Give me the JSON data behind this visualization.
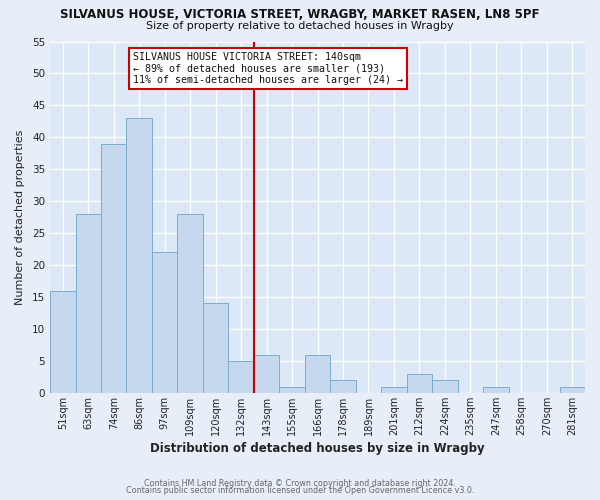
{
  "title": "SILVANUS HOUSE, VICTORIA STREET, WRAGBY, MARKET RASEN, LN8 5PF",
  "subtitle": "Size of property relative to detached houses in Wragby",
  "xlabel": "Distribution of detached houses by size in Wragby",
  "ylabel": "Number of detached properties",
  "bar_labels": [
    "51sqm",
    "63sqm",
    "74sqm",
    "86sqm",
    "97sqm",
    "109sqm",
    "120sqm",
    "132sqm",
    "143sqm",
    "155sqm",
    "166sqm",
    "178sqm",
    "189sqm",
    "201sqm",
    "212sqm",
    "224sqm",
    "235sqm",
    "247sqm",
    "258sqm",
    "270sqm",
    "281sqm"
  ],
  "bar_values": [
    16,
    28,
    39,
    43,
    22,
    28,
    14,
    5,
    6,
    1,
    6,
    2,
    0,
    1,
    3,
    2,
    0,
    1,
    0,
    0,
    1
  ],
  "bar_color": "#c5d8ed",
  "bar_edgecolor": "#7aadce",
  "vline_color": "#cc0000",
  "ylim": [
    0,
    55
  ],
  "yticks": [
    0,
    5,
    10,
    15,
    20,
    25,
    30,
    35,
    40,
    45,
    50,
    55
  ],
  "annotation_title": "SILVANUS HOUSE VICTORIA STREET: 140sqm",
  "annotation_line1": "← 89% of detached houses are smaller (193)",
  "annotation_line2": "11% of semi-detached houses are larger (24) →",
  "footer1": "Contains HM Land Registry data © Crown copyright and database right 2024.",
  "footer2": "Contains public sector information licensed under the Open Government Licence v3.0.",
  "bg_color": "#e8eef8",
  "grid_color": "#ffffff",
  "plot_bg_color": "#dce8f5"
}
